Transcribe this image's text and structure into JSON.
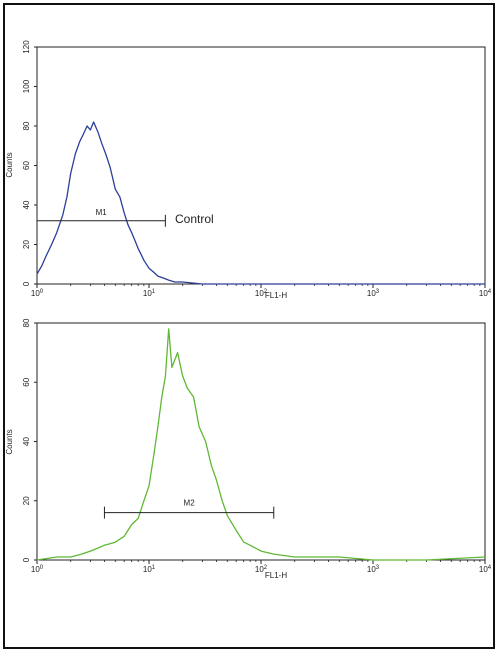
{
  "chart_data": [
    {
      "type": "line",
      "xlabel": "FL1-H",
      "ylabel": "Counts",
      "x_scale": "log",
      "xlim": [
        1,
        10000
      ],
      "ylim": [
        0,
        120
      ],
      "x_ticks": [
        {
          "value": 1,
          "base": "10",
          "exp": "0"
        },
        {
          "value": 10,
          "base": "10",
          "exp": "1"
        },
        {
          "value": 100,
          "base": "10",
          "exp": "2"
        },
        {
          "value": 1000,
          "base": "10",
          "exp": "3"
        },
        {
          "value": 10000,
          "base": "10",
          "exp": "4"
        }
      ],
      "y_ticks": [
        0,
        20,
        40,
        60,
        80,
        100,
        120
      ],
      "grid": false,
      "series": [
        {
          "color": "#2b3f9a",
          "x": [
            1.0,
            1.1,
            1.2,
            1.35,
            1.5,
            1.7,
            1.85,
            2.0,
            2.2,
            2.4,
            2.6,
            2.8,
            3.0,
            3.2,
            3.5,
            3.8,
            4.1,
            4.5,
            5.0,
            5.5,
            6.0,
            6.5,
            7.0,
            7.5,
            8.0,
            8.5,
            9.0,
            10.0,
            11.0,
            12.0,
            13.5,
            15.0,
            17.0,
            20.0,
            30.0,
            50.0,
            100.0,
            1000.0,
            10000.0
          ],
          "y": [
            5,
            9,
            14,
            20,
            26,
            35,
            44,
            56,
            66,
            72,
            76,
            80,
            78,
            82,
            77,
            71,
            66,
            59,
            48,
            44,
            36,
            30,
            26,
            22,
            18,
            15,
            12,
            8,
            6,
            4,
            3,
            2,
            1,
            1,
            0,
            0,
            0,
            0,
            0
          ]
        }
      ],
      "gate": {
        "label": "M1",
        "x_range": [
          1,
          14
        ],
        "y": 32
      },
      "annotation": "Control"
    },
    {
      "type": "line",
      "xlabel": "FL1-H",
      "ylabel": "Counts",
      "x_scale": "log",
      "xlim": [
        1,
        10000
      ],
      "ylim": [
        0,
        80
      ],
      "x_ticks": [
        {
          "value": 1,
          "base": "10",
          "exp": "0"
        },
        {
          "value": 10,
          "base": "10",
          "exp": "1"
        },
        {
          "value": 100,
          "base": "10",
          "exp": "2"
        },
        {
          "value": 1000,
          "base": "10",
          "exp": "3"
        },
        {
          "value": 10000,
          "base": "10",
          "exp": "4"
        }
      ],
      "y_ticks": [
        0,
        20,
        40,
        60,
        80
      ],
      "grid": false,
      "series": [
        {
          "color": "#5fb834",
          "x": [
            1.0,
            1.5,
            2.0,
            2.5,
            3.0,
            3.5,
            4.0,
            5.0,
            6.0,
            7.0,
            8.0,
            9.0,
            10.0,
            11.0,
            12.0,
            13.0,
            14.0,
            15.0,
            16.0,
            18.0,
            20.0,
            22.0,
            25.0,
            28.0,
            32.0,
            36.0,
            40.0,
            45.0,
            50.0,
            60.0,
            70.0,
            80.0,
            100.0,
            130.0,
            200.0,
            500.0,
            1000.0,
            3000.0,
            10000.0
          ],
          "y": [
            0,
            1,
            1,
            2,
            3,
            4,
            5,
            6,
            8,
            12,
            14,
            20,
            25,
            35,
            45,
            55,
            62,
            78,
            65,
            70,
            62,
            58,
            55,
            45,
            40,
            32,
            27,
            20,
            15,
            10,
            6,
            5,
            3,
            2,
            1,
            1,
            0,
            0,
            1
          ]
        }
      ],
      "gate": {
        "label": "M2",
        "x_range": [
          4,
          130
        ],
        "y": 16
      }
    }
  ]
}
